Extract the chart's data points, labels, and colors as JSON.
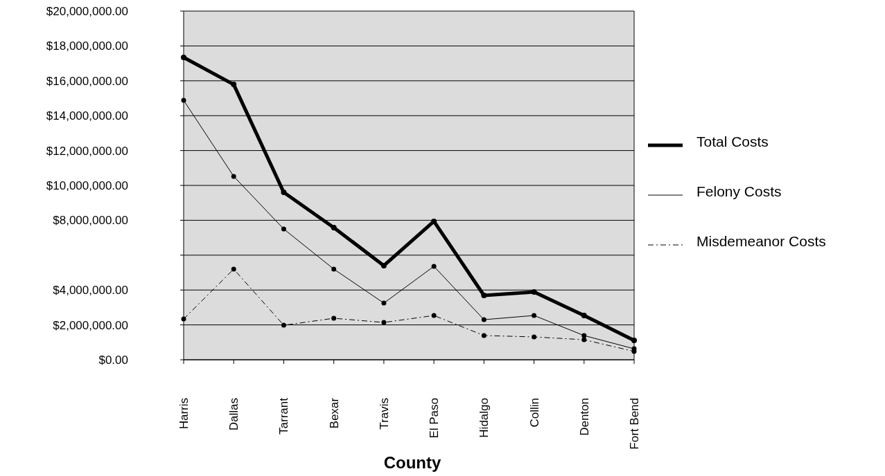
{
  "chart_data": {
    "type": "line",
    "xlabel": "County",
    "categories": [
      "Harris",
      "Dallas",
      "Tarrant",
      "Bexar",
      "Travis",
      "El Paso",
      "Hidalgo",
      "Collin",
      "Denton",
      "Fort Bend"
    ],
    "series": [
      {
        "name": "Total Costs",
        "color": "#000000",
        "line_style": "solid",
        "values": [
          17340000,
          15790000,
          9600000,
          7580000,
          5400000,
          7940000,
          3690000,
          3890000,
          2540000,
          1110000
        ]
      },
      {
        "name": "Felony Costs",
        "color": "#000000",
        "line_style": "solid",
        "values": [
          14880000,
          10520000,
          7500000,
          5200000,
          3250000,
          5360000,
          2300000,
          2540000,
          1390000,
          630000
        ]
      },
      {
        "name": "Misdemeanor Costs",
        "color": "#000000",
        "line_style": "dashed",
        "values": [
          2340000,
          5200000,
          1980000,
          2380000,
          2140000,
          2540000,
          1390000,
          1310000,
          1150000,
          480000
        ]
      }
    ],
    "ylim": [
      0,
      20000000
    ],
    "yticks": [
      {
        "value": 0,
        "label": "$0.00"
      },
      {
        "value": 2000000,
        "label": "$2,000,000.00"
      },
      {
        "value": 4000000,
        "label": "$4,000,000.00"
      },
      {
        "value": 6000000,
        "label": null
      },
      {
        "value": 8000000,
        "label": "$8,000,000.00"
      },
      {
        "value": 10000000,
        "label": "$10,000,000.00"
      },
      {
        "value": 12000000,
        "label": "$12,000,000.00"
      },
      {
        "value": 14000000,
        "label": "$14,000,000.00"
      },
      {
        "value": 16000000,
        "label": "$16,000,000.00"
      },
      {
        "value": 18000000,
        "label": "$18,000,000.00"
      },
      {
        "value": 20000000,
        "label": "$20,000,000.00"
      }
    ],
    "grid": "y",
    "legend": "right",
    "marker": "circle"
  }
}
